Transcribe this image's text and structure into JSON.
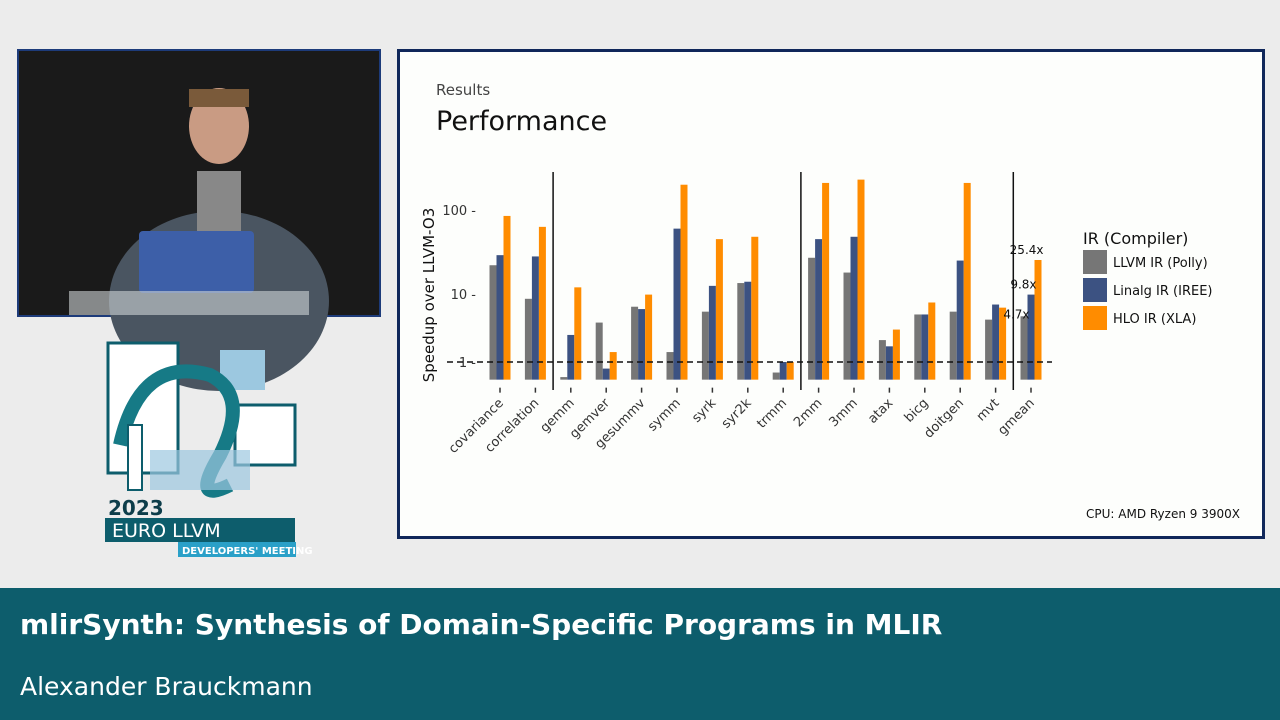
{
  "slide": {
    "section": "Results",
    "title": "Performance",
    "footnote": "CPU: AMD Ryzen 9 3900X"
  },
  "banner": {
    "talk_title": "mlirSynth: Synthesis of Domain-Specific Programs in MLIR",
    "speaker": "Alexander Brauckmann"
  },
  "logo": {
    "text": "2023 EURO LLVM DEVELOPERS' MEETING"
  },
  "chart_data": {
    "type": "bar",
    "ylabel": "Speedup over LLVM-O3",
    "yscale": "log",
    "yticks": [
      "1",
      "10",
      "100"
    ],
    "ylim": [
      0.55,
      300
    ],
    "baseline": 1,
    "legend_title": "IR (Compiler)",
    "legend_position": "right",
    "categories": [
      "covariance",
      "correlation",
      "gemm",
      "gemver",
      "gesummv",
      "symm",
      "syrk",
      "syr2k",
      "trmm",
      "2mm",
      "3mm",
      "atax",
      "bicg",
      "doitgen",
      "mvt",
      "gmean"
    ],
    "group_separators_after": [
      "correlation",
      "trmm",
      "mvt"
    ],
    "series": [
      {
        "name": "LLVM IR (Polly)",
        "color": "#767676",
        "values": [
          22,
          8.5,
          0.6,
          3.8,
          6.5,
          1.4,
          5.5,
          13.5,
          0.7,
          27,
          18,
          2.1,
          5,
          5.5,
          4.2,
          4.7
        ]
      },
      {
        "name": "Linalg IR (IREE)",
        "color": "#3c5282",
        "values": [
          29,
          28,
          2.5,
          0.8,
          6,
          60,
          12.5,
          14,
          1,
          45,
          48,
          1.7,
          5,
          25,
          7,
          9.8
        ]
      },
      {
        "name": "HLO IR (XLA)",
        "color": "#ff8c00",
        "values": [
          85,
          63,
          12,
          1.4,
          9.8,
          200,
          45,
          48,
          1,
          210,
          230,
          3,
          7.5,
          210,
          6.3,
          25.4
        ]
      }
    ],
    "annotations": [
      "4.7x",
      "9.8x",
      "25.4x"
    ]
  }
}
